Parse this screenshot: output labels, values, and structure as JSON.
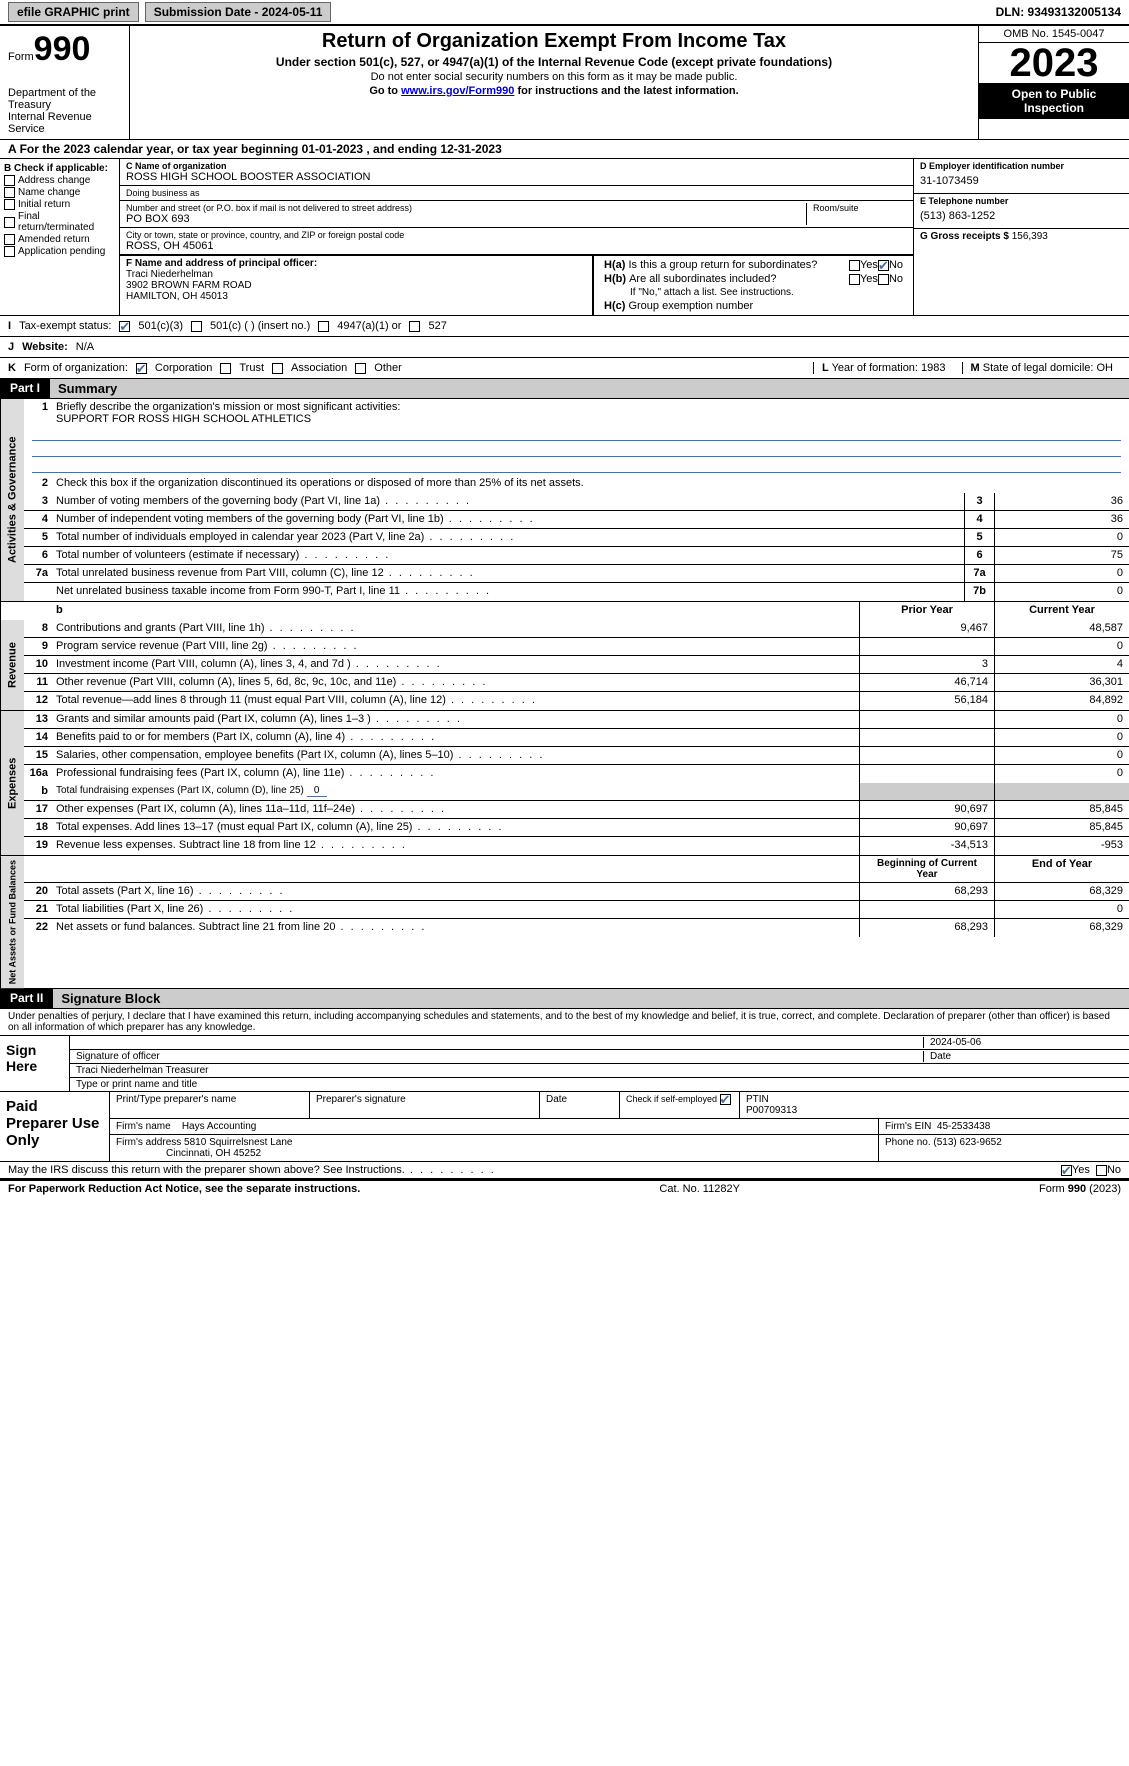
{
  "topbar": {
    "efile": "efile GRAPHIC print",
    "submission": "Submission Date - 2024-05-11",
    "dln": "DLN: 93493132005134"
  },
  "header": {
    "form_word": "Form",
    "form_num": "990",
    "title": "Return of Organization Exempt From Income Tax",
    "subtitle": "Under section 501(c), 527, or 4947(a)(1) of the Internal Revenue Code (except private foundations)",
    "note1": "Do not enter social security numbers on this form as it may be made public.",
    "note2_pre": "Go to ",
    "note2_link": "www.irs.gov/Form990",
    "note2_post": " for instructions and the latest information.",
    "dept": "Department of the Treasury\nInternal Revenue Service",
    "omb": "OMB No. 1545-0047",
    "year": "2023",
    "open": "Open to Public Inspection"
  },
  "A": {
    "text": "For the 2023 calendar year, or tax year beginning 01-01-2023   , and ending 12-31-2023"
  },
  "B": {
    "head": "B Check if applicable:",
    "items": [
      "Address change",
      "Name change",
      "Initial return",
      "Final return/terminated",
      "Amended return",
      "Application pending"
    ]
  },
  "C": {
    "name_label": "C Name of organization",
    "name": "ROSS HIGH SCHOOL BOOSTER ASSOCIATION",
    "dba_label": "Doing business as",
    "dba": "",
    "street_label": "Number and street (or P.O. box if mail is not delivered to street address)",
    "room_label": "Room/suite",
    "street": "PO BOX 693",
    "city_label": "City or town, state or province, country, and ZIP or foreign postal code",
    "city": "ROSS, OH  45061"
  },
  "D": {
    "label": "D Employer identification number",
    "value": "31-1073459"
  },
  "E": {
    "label": "E Telephone number",
    "value": "(513) 863-1252"
  },
  "G": {
    "label": "G Gross receipts $",
    "value": "156,393"
  },
  "F": {
    "label": "F  Name and address of principal officer:",
    "name": "Traci Niederhelman",
    "addr1": "3902 BROWN FARM ROAD",
    "addr2": "HAMILTON, OH  45013"
  },
  "H": {
    "a": "Is this a group return for subordinates?",
    "b": "Are all subordinates included?",
    "b_note": "If \"No,\" attach a list. See instructions.",
    "c": "Group exemption number",
    "a_no_checked": true
  },
  "I": {
    "label": "Tax-exempt status:",
    "opt1": "501(c)(3)",
    "opt2": "501(c) (  ) (insert no.)",
    "opt3": "4947(a)(1) or",
    "opt4": "527",
    "checked": 0
  },
  "J": {
    "label": "Website:",
    "value": "N/A"
  },
  "K": {
    "label": "Form of organization:",
    "opts": [
      "Corporation",
      "Trust",
      "Association",
      "Other"
    ],
    "checked": 0
  },
  "L": {
    "label": "Year of formation:",
    "value": "1983"
  },
  "M": {
    "label": "State of legal domicile:",
    "value": "OH"
  },
  "part1": {
    "header": "Part I",
    "title": "Summary"
  },
  "summary": {
    "mission_label": "Briefly describe the organization's mission or most significant activities:",
    "mission": "SUPPORT FOR ROSS HIGH SCHOOL ATHLETICS",
    "line2": "Check this box       if the organization discontinued its operations or disposed of more than 25% of its net assets.",
    "lines_gov": [
      {
        "n": "3",
        "d": "Number of voting members of the governing body (Part VI, line 1a)",
        "box": "3",
        "v": "36"
      },
      {
        "n": "4",
        "d": "Number of independent voting members of the governing body (Part VI, line 1b)",
        "box": "4",
        "v": "36"
      },
      {
        "n": "5",
        "d": "Total number of individuals employed in calendar year 2023 (Part V, line 2a)",
        "box": "5",
        "v": "0"
      },
      {
        "n": "6",
        "d": "Total number of volunteers (estimate if necessary)",
        "box": "6",
        "v": "75"
      },
      {
        "n": "7a",
        "d": "Total unrelated business revenue from Part VIII, column (C), line 12",
        "box": "7a",
        "v": "0"
      },
      {
        "n": "",
        "d": "Net unrelated business taxable income from Form 990-T, Part I, line 11",
        "box": "7b",
        "v": "0"
      }
    ],
    "col_prior": "Prior Year",
    "col_current": "Current Year",
    "revenue": [
      {
        "n": "8",
        "d": "Contributions and grants (Part VIII, line 1h)",
        "p": "9,467",
        "c": "48,587"
      },
      {
        "n": "9",
        "d": "Program service revenue (Part VIII, line 2g)",
        "p": "",
        "c": "0"
      },
      {
        "n": "10",
        "d": "Investment income (Part VIII, column (A), lines 3, 4, and 7d )",
        "p": "3",
        "c": "4"
      },
      {
        "n": "11",
        "d": "Other revenue (Part VIII, column (A), lines 5, 6d, 8c, 9c, 10c, and 11e)",
        "p": "46,714",
        "c": "36,301"
      },
      {
        "n": "12",
        "d": "Total revenue—add lines 8 through 11 (must equal Part VIII, column (A), line 12)",
        "p": "56,184",
        "c": "84,892"
      }
    ],
    "expenses": [
      {
        "n": "13",
        "d": "Grants and similar amounts paid (Part IX, column (A), lines 1–3 )",
        "p": "",
        "c": "0"
      },
      {
        "n": "14",
        "d": "Benefits paid to or for members (Part IX, column (A), line 4)",
        "p": "",
        "c": "0"
      },
      {
        "n": "15",
        "d": "Salaries, other compensation, employee benefits (Part IX, column (A), lines 5–10)",
        "p": "",
        "c": "0"
      },
      {
        "n": "16a",
        "d": "Professional fundraising fees (Part IX, column (A), line 11e)",
        "p": "",
        "c": "0"
      }
    ],
    "exp_b": {
      "n": "b",
      "d": "Total fundraising expenses (Part IX, column (D), line 25)",
      "u": "0"
    },
    "expenses2": [
      {
        "n": "17",
        "d": "Other expenses (Part IX, column (A), lines 11a–11d, 11f–24e)",
        "p": "90,697",
        "c": "85,845"
      },
      {
        "n": "18",
        "d": "Total expenses. Add lines 13–17 (must equal Part IX, column (A), line 25)",
        "p": "90,697",
        "c": "85,845"
      },
      {
        "n": "19",
        "d": "Revenue less expenses. Subtract line 18 from line 12",
        "p": "-34,513",
        "c": "-953"
      }
    ],
    "col_begin": "Beginning of Current Year",
    "col_end": "End of Year",
    "netassets": [
      {
        "n": "20",
        "d": "Total assets (Part X, line 16)",
        "p": "68,293",
        "c": "68,329"
      },
      {
        "n": "21",
        "d": "Total liabilities (Part X, line 26)",
        "p": "",
        "c": "0"
      },
      {
        "n": "22",
        "d": "Net assets or fund balances. Subtract line 21 from line 20",
        "p": "68,293",
        "c": "68,329"
      }
    ]
  },
  "part2": {
    "header": "Part II",
    "title": "Signature Block"
  },
  "sig": {
    "declaration": "Under penalties of perjury, I declare that I have examined this return, including accompanying schedules and statements, and to the best of my knowledge and belief, it is true, correct, and complete. Declaration of preparer (other than officer) is based on all information of which preparer has any knowledge.",
    "sign_here": "Sign Here",
    "date": "2024-05-06",
    "sig_officer": "Signature of officer",
    "officer_name": "Traci Niederhelman  Treasurer",
    "type_name": "Type or print name and title",
    "date_label": "Date"
  },
  "paid": {
    "label": "Paid Preparer Use Only",
    "headers": [
      "Print/Type preparer's name",
      "Preparer's signature",
      "Date"
    ],
    "check_label": "Check         if self-employed",
    "ptin_label": "PTIN",
    "ptin": "P00709313",
    "firm_name_label": "Firm's name",
    "firm_name": "Hays Accounting",
    "firm_ein_label": "Firm's EIN",
    "firm_ein": "45-2533438",
    "firm_addr_label": "Firm's address",
    "firm_addr1": "5810 Squirrelsnest Lane",
    "firm_addr2": "Cincinnati, OH  45252",
    "phone_label": "Phone no.",
    "phone": "(513) 623-9652"
  },
  "discuss": {
    "text": "May the IRS discuss this return with the preparer shown above? See Instructions.",
    "yes_checked": true
  },
  "footer": {
    "left": "For Paperwork Reduction Act Notice, see the separate instructions.",
    "mid": "Cat. No. 11282Y",
    "right": "Form 990 (2023)"
  },
  "style": {
    "boxcheck_color": "#4a6fa5"
  }
}
